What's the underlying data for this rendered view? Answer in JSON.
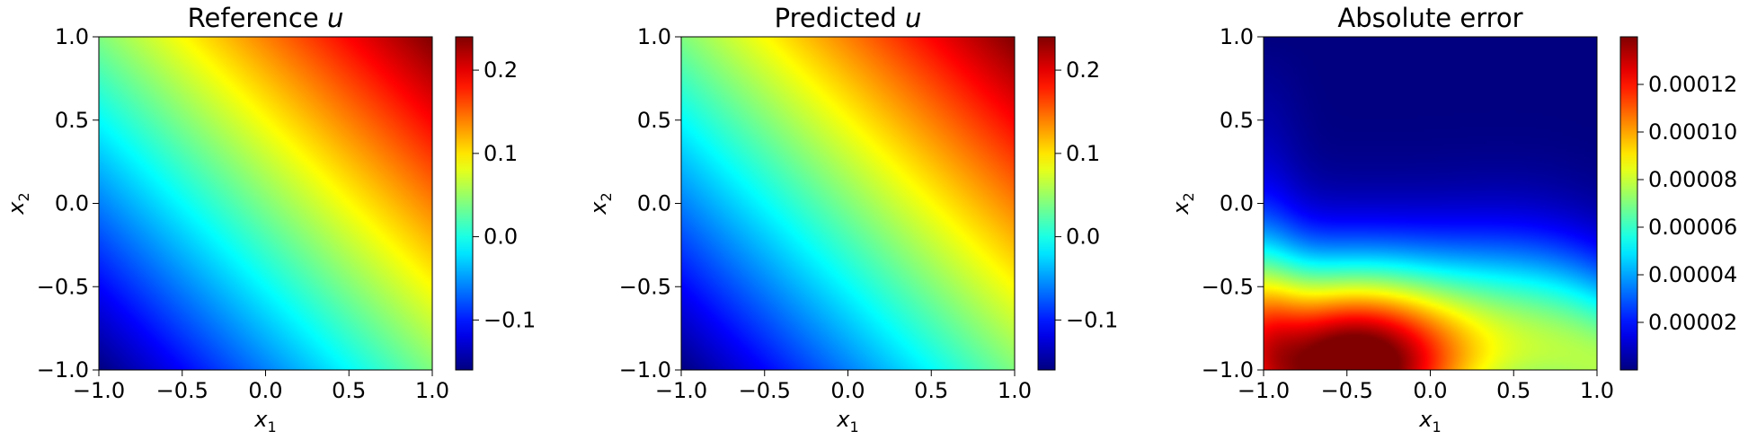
{
  "chart_data": [
    {
      "type": "heatmap",
      "title_prefix": "Reference ",
      "title_var": "u",
      "xlabel": {
        "base": "x",
        "sub": "1"
      },
      "ylabel": {
        "base": "x",
        "sub": "2"
      },
      "xlim": [
        -1.0,
        1.0
      ],
      "ylim": [
        -1.0,
        1.0
      ],
      "xticks": [
        "−1.0",
        "−0.5",
        "0.0",
        "0.5",
        "1.0"
      ],
      "yticks": [
        "−1.0",
        "−0.5",
        "0.0",
        "0.5",
        "1.0"
      ],
      "colormap": "jet",
      "colorbar": {
        "range": [
          -0.16,
          0.24
        ],
        "ticks": [
          {
            "value": -0.1,
            "label": "−0.1"
          },
          {
            "value": 0.0,
            "label": "0.0"
          },
          {
            "value": 0.1,
            "label": "0.1"
          },
          {
            "value": 0.2,
            "label": "0.2"
          }
        ]
      },
      "field": "linear_sum",
      "field_params": {
        "min": -0.16,
        "max": 0.24
      }
    },
    {
      "type": "heatmap",
      "title_prefix": "Predicted ",
      "title_var": "u",
      "xlabel": {
        "base": "x",
        "sub": "1"
      },
      "ylabel": {
        "base": "x",
        "sub": "2"
      },
      "xlim": [
        -1.0,
        1.0
      ],
      "ylim": [
        -1.0,
        1.0
      ],
      "xticks": [
        "−1.0",
        "−0.5",
        "0.0",
        "0.5",
        "1.0"
      ],
      "yticks": [
        "−1.0",
        "−0.5",
        "0.0",
        "0.5",
        "1.0"
      ],
      "colormap": "jet",
      "colorbar": {
        "range": [
          -0.16,
          0.24
        ],
        "ticks": [
          {
            "value": -0.1,
            "label": "−0.1"
          },
          {
            "value": 0.0,
            "label": "0.0"
          },
          {
            "value": 0.1,
            "label": "0.1"
          },
          {
            "value": 0.2,
            "label": "0.2"
          }
        ]
      },
      "field": "linear_sum",
      "field_params": {
        "min": -0.16,
        "max": 0.24
      }
    },
    {
      "type": "heatmap",
      "title_prefix": "Absolute error",
      "title_var": "",
      "xlabel": {
        "base": "x",
        "sub": "1"
      },
      "ylabel": {
        "base": "x",
        "sub": "2"
      },
      "xlim": [
        -1.0,
        1.0
      ],
      "ylim": [
        -1.0,
        1.0
      ],
      "xticks": [
        "−1.0",
        "−0.5",
        "0.0",
        "0.5",
        "1.0"
      ],
      "yticks": [
        "−1.0",
        "−0.5",
        "0.0",
        "0.5",
        "1.0"
      ],
      "colormap": "jet",
      "colorbar": {
        "range": [
          0.0,
          0.00014
        ],
        "ticks": [
          {
            "value": 2e-05,
            "label": "0.00002"
          },
          {
            "value": 4e-05,
            "label": "0.00004"
          },
          {
            "value": 6e-05,
            "label": "0.00006"
          },
          {
            "value": 8e-05,
            "label": "0.00008"
          },
          {
            "value": 0.0001,
            "label": "0.00010"
          },
          {
            "value": 0.00012,
            "label": "0.00012"
          }
        ]
      },
      "field": "error_band",
      "field_params": {
        "min": 0.0,
        "max": 0.00014
      }
    }
  ]
}
